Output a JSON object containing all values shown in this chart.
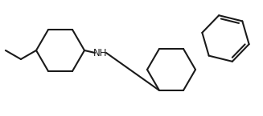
{
  "background_color": "#ffffff",
  "line_color": "#1a1a1a",
  "line_width": 1.5,
  "nh_label": "NH",
  "nh_fontsize": 8.5,
  "fig_width": 3.27,
  "fig_height": 1.45,
  "dpi": 100
}
